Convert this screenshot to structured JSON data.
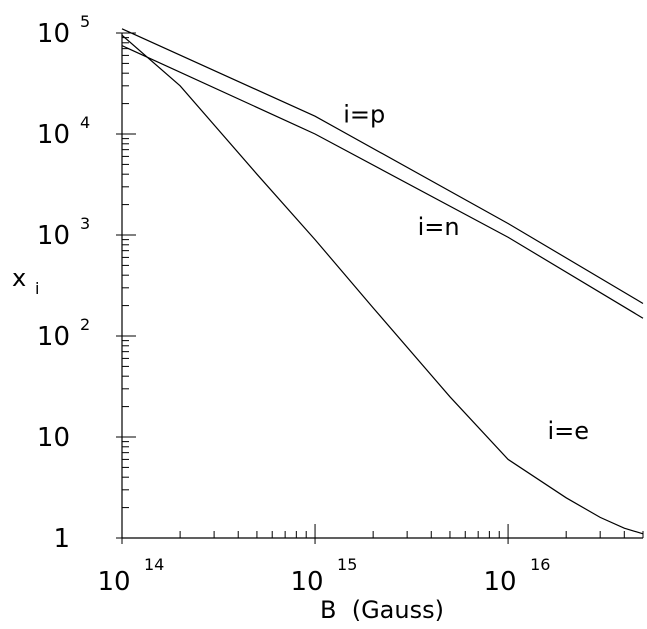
{
  "chart_data": {
    "type": "line",
    "xscale": "log",
    "yscale": "log",
    "xlim": [
      100000000000000.0,
      5e+16
    ],
    "ylim": [
      1,
      100000
    ],
    "xlabel": "B  (Gauss)",
    "ylabel": "x",
    "ylabel_subscript": "i",
    "grid": false,
    "x_ticks": [
      {
        "value": 100000000000000.0,
        "base": "10",
        "exp": "14"
      },
      {
        "value": 1000000000000000.0,
        "base": "10",
        "exp": "15"
      },
      {
        "value": 1e+16,
        "base": "10",
        "exp": "16"
      }
    ],
    "y_ticks": [
      {
        "value": 1,
        "base": "1",
        "exp": ""
      },
      {
        "value": 10,
        "base": "10",
        "exp": ""
      },
      {
        "value": 100,
        "base": "10",
        "exp": "2"
      },
      {
        "value": 1000,
        "base": "10",
        "exp": "3"
      },
      {
        "value": 10000,
        "base": "10",
        "exp": "4"
      },
      {
        "value": 100000,
        "base": "10",
        "exp": "5"
      }
    ],
    "series": [
      {
        "name": "i=p",
        "label_at": [
          1400000000000000.0,
          13000
        ],
        "x": [
          100000000000000.0,
          1000000000000000.0,
          1e+16,
          5e+16
        ],
        "y": [
          110000,
          15000,
          1300,
          210
        ]
      },
      {
        "name": "i=n",
        "label_at": [
          3400000000000000.0,
          1000
        ],
        "x": [
          100000000000000.0,
          1000000000000000.0,
          1e+16,
          5e+16
        ],
        "y": [
          75000,
          10000,
          950,
          150
        ]
      },
      {
        "name": "i=e",
        "label_at": [
          1.6e+16,
          9.5
        ],
        "x": [
          100000000000000.0,
          200000000000000.0,
          500000000000000.0,
          1000000000000000.0,
          2000000000000000.0,
          5000000000000000.0,
          1e+16,
          2e+16,
          3e+16,
          4e+16,
          5e+16
        ],
        "y": [
          95000,
          30000,
          4000,
          900,
          190,
          25,
          6,
          2.5,
          1.6,
          1.25,
          1.1
        ]
      }
    ]
  }
}
